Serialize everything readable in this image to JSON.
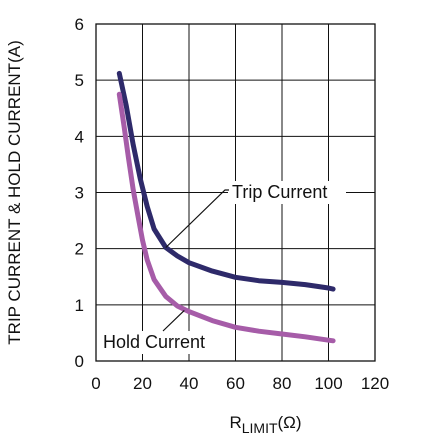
{
  "chart_data": {
    "type": "line",
    "xlabel_main": "R",
    "xlabel_sub": "LIMIT",
    "xlabel_unit": "(Ω)",
    "ylabel": "TRIP CURRENT & HOLD CURRENT(A)",
    "xlim": [
      0,
      120
    ],
    "ylim": [
      0,
      6
    ],
    "x_ticks": [
      0,
      20,
      40,
      60,
      80,
      100,
      120
    ],
    "y_ticks": [
      0,
      1,
      2,
      3,
      4,
      5,
      6
    ],
    "grid": true,
    "series": [
      {
        "name": "Trip Current",
        "color": "#2e2a6a",
        "x": [
          10,
          13,
          16,
          19,
          22,
          25,
          30,
          35,
          40,
          50,
          60,
          70,
          80,
          90,
          100,
          102
        ],
        "y": [
          5.12,
          4.55,
          3.85,
          3.25,
          2.75,
          2.35,
          2.02,
          1.87,
          1.75,
          1.6,
          1.49,
          1.43,
          1.4,
          1.36,
          1.3,
          1.28
        ]
      },
      {
        "name": "Hold Current",
        "color": "#a65ca8",
        "x": [
          10,
          12,
          14,
          16,
          18,
          20,
          22,
          25,
          30,
          35,
          40,
          50,
          60,
          70,
          80,
          90,
          100,
          102
        ],
        "y": [
          4.75,
          4.2,
          3.6,
          3.05,
          2.6,
          2.15,
          1.8,
          1.45,
          1.15,
          0.98,
          0.88,
          0.72,
          0.6,
          0.53,
          0.48,
          0.43,
          0.37,
          0.36
        ]
      }
    ],
    "annotations": [
      {
        "text": "Trip Current",
        "series": "Trip Current",
        "point": [
          30,
          2.02
        ]
      },
      {
        "text": "Hold Current",
        "series": "Hold Current",
        "point": [
          38,
          0.9
        ]
      }
    ]
  }
}
